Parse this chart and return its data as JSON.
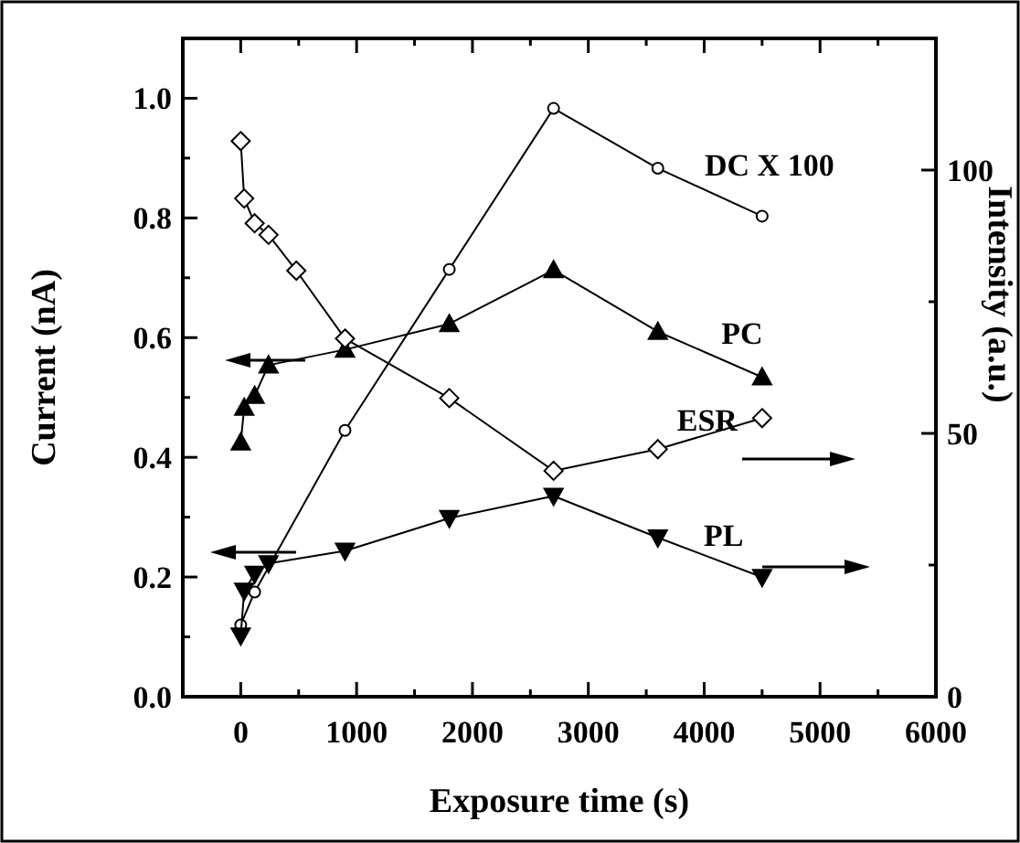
{
  "chart_data": {
    "type": "line",
    "xlabel": "Exposure time (s)",
    "ylabel": "Current (nA)",
    "y2label": "Intensity (a.u.)",
    "xlim": [
      -500,
      6000
    ],
    "xticks": [
      0,
      {
        "value": 500,
        "label": null
      },
      1000,
      {
        "value": 1500,
        "label": null
      },
      2000,
      {
        "value": 2500,
        "label": null
      },
      3000,
      {
        "value": 3500,
        "label": null
      },
      4000,
      {
        "value": 4500,
        "label": null
      },
      5000,
      {
        "value": 5500,
        "label": null
      },
      6000
    ],
    "ylim": [
      0,
      1.1
    ],
    "yticks": [
      {
        "value": 0,
        "label": "0.0"
      },
      {
        "value": 0.1,
        "label": null
      },
      0.2,
      {
        "value": 0.3,
        "label": null
      },
      0.4,
      {
        "value": 0.5,
        "label": null
      },
      0.6,
      {
        "value": 0.7,
        "label": null
      },
      0.8,
      {
        "value": 0.9,
        "label": null
      },
      {
        "value": 1,
        "label": "1.0"
      }
    ],
    "y2lim": [
      0,
      125
    ],
    "y2ticks": [
      0,
      {
        "value": 25,
        "label": null
      },
      50,
      {
        "value": 75,
        "label": null
      },
      100
    ],
    "grid": false,
    "line_style": "solid",
    "series": [
      {
        "name": "DC X 100",
        "color": "#000000",
        "marker": "circle",
        "x": [
          0,
          120,
          900,
          1800,
          2700,
          3600,
          4500
        ],
        "values": [
          0.12,
          0.175,
          0.445,
          0.714,
          0.983,
          0.883,
          0.803
        ]
      },
      {
        "name": "PC",
        "color": "#000000",
        "marker": "triangle",
        "x": [
          0,
          30,
          120,
          240,
          900,
          1800,
          2700,
          3600,
          4500
        ],
        "values": [
          0.425,
          0.483,
          0.503,
          0.554,
          0.58,
          0.623,
          0.713,
          0.61,
          0.534
        ]
      },
      {
        "name": "ESR",
        "color": "#000000",
        "marker": "diamond",
        "axis": "y2",
        "x": [
          0,
          30,
          120,
          240,
          480,
          900,
          1800,
          2700,
          3600,
          4500
        ],
        "values": [
          105.5,
          94.6,
          89.9,
          87.7,
          80.9,
          68,
          56.7,
          42.9,
          47,
          52.9
        ]
      },
      {
        "name": "PL",
        "color": "#000000",
        "marker": "triangle-down",
        "axis": "y2",
        "x": [
          0,
          30,
          120,
          240,
          900,
          1800,
          2700,
          3600,
          4500
        ],
        "values": [
          11.6,
          20.1,
          23.3,
          25.3,
          27.7,
          33.9,
          38.1,
          30.2,
          22.7
        ]
      }
    ]
  }
}
